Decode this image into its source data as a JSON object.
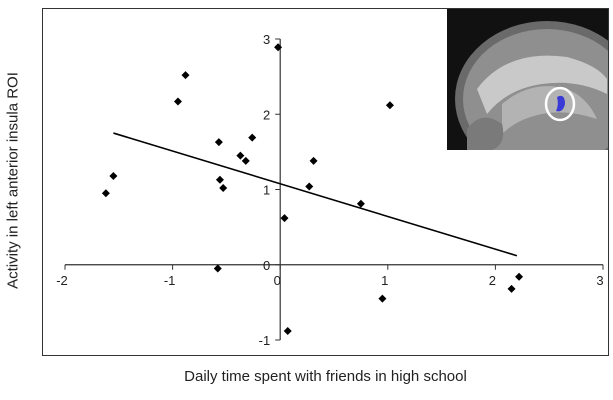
{
  "chart_data": {
    "type": "scatter",
    "title": "",
    "xlabel": "Daily time spent with friends in high school",
    "ylabel": "Activity in left anterior insula ROI",
    "xlim": [
      -2,
      3
    ],
    "ylim": [
      -1,
      3
    ],
    "xticks": [
      -2,
      -1,
      0,
      1,
      2,
      3
    ],
    "yticks": [
      -1,
      0,
      1,
      2,
      3
    ],
    "grid": false,
    "legend": "none",
    "marker_color": "#000000",
    "line_color": "#000000",
    "series": [
      {
        "points": [
          {
            "x": -1.62,
            "y": 0.95
          },
          {
            "x": -1.55,
            "y": 1.18
          },
          {
            "x": -0.95,
            "y": 2.17
          },
          {
            "x": -0.88,
            "y": 2.52
          },
          {
            "x": -0.57,
            "y": 1.63
          },
          {
            "x": -0.56,
            "y": 1.13
          },
          {
            "x": -0.53,
            "y": 1.02
          },
          {
            "x": -0.58,
            "y": -0.05
          },
          {
            "x": -0.37,
            "y": 1.45
          },
          {
            "x": -0.32,
            "y": 1.38
          },
          {
            "x": -0.26,
            "y": 1.69
          },
          {
            "x": -0.02,
            "y": 2.89
          },
          {
            "x": 0.04,
            "y": 0.62
          },
          {
            "x": 0.07,
            "y": -0.88
          },
          {
            "x": 0.27,
            "y": 1.04
          },
          {
            "x": 0.31,
            "y": 1.38
          },
          {
            "x": 0.75,
            "y": 0.81
          },
          {
            "x": 0.95,
            "y": -0.45
          },
          {
            "x": 1.02,
            "y": 2.12
          },
          {
            "x": 2.15,
            "y": -0.32
          },
          {
            "x": 2.22,
            "y": -0.16
          }
        ]
      }
    ],
    "trendline": {
      "x": [
        -1.55,
        2.2
      ],
      "y": [
        1.75,
        0.12
      ]
    },
    "inset_image": "brain-sagittal-mri-with-roi"
  },
  "colors": {
    "inset_bg": "#111111",
    "roi_circle": "#ffffff",
    "roi_blob": "#3a3bd6"
  }
}
